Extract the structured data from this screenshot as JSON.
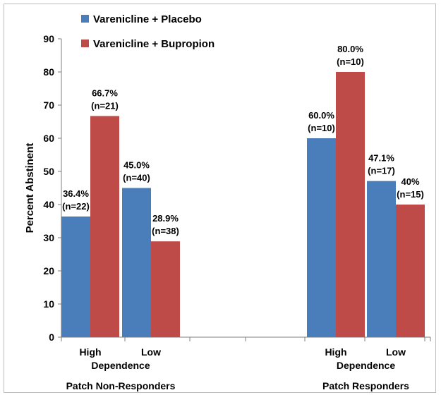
{
  "chart_data": {
    "type": "bar",
    "ylabel": "Percent Abstinent",
    "ylim": [
      0,
      90
    ],
    "ytick_step": 10,
    "grid": false,
    "legend_position": "top-left",
    "groups": [
      {
        "label": "Patch Non-Responders",
        "subgroup_label": "Dependence",
        "categories": [
          "High",
          "Low"
        ]
      },
      {
        "label": "Patch Responders",
        "subgroup_label": "Dependence",
        "categories": [
          "High",
          "Low"
        ]
      }
    ],
    "series": [
      {
        "name": "Varenicline + Placebo",
        "color": "#4a7ebb",
        "values": [
          36.4,
          45.0,
          60.0,
          47.1
        ],
        "labels": [
          "36.4%\n(n=22)",
          "45.0%\n(n=40)",
          "60.0%\n(n=10)",
          "47.1%\n(n=17)"
        ]
      },
      {
        "name": "Varenicline + Bupropion",
        "color": "#be4b48",
        "values": [
          66.7,
          28.9,
          80.0,
          40.0
        ],
        "labels": [
          "66.7%\n(n=21)",
          "28.9%\n(n=38)",
          "80.0%\n(n=10)",
          "40%\n(n=15)"
        ]
      }
    ]
  }
}
